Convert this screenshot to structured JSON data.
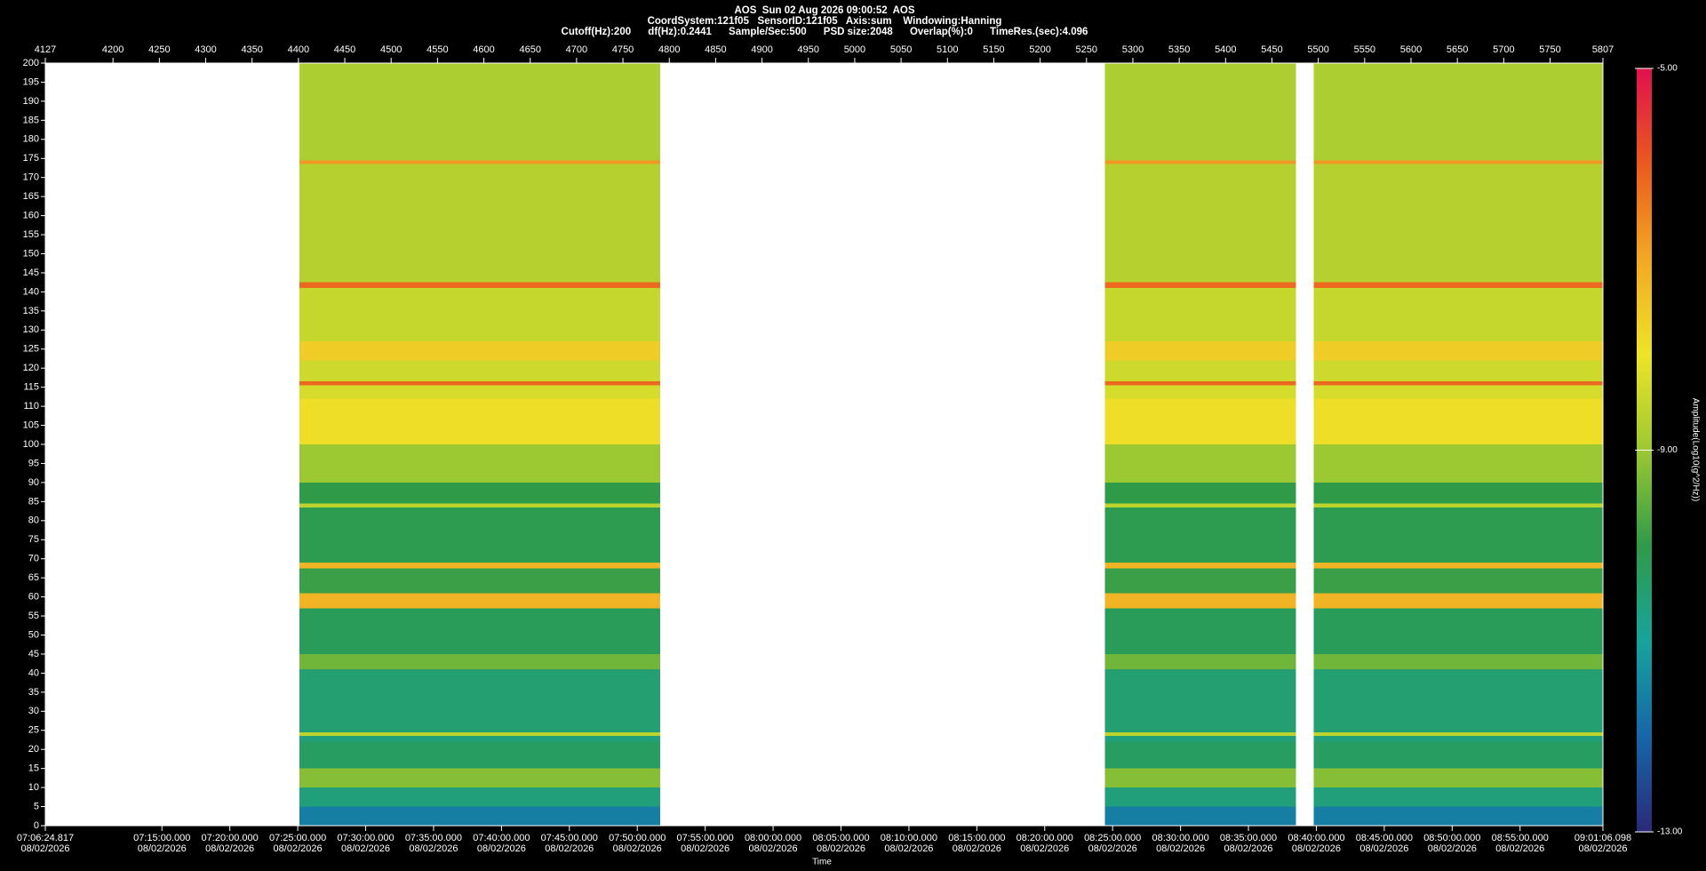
{
  "chart_data": {
    "type": "spectrogram",
    "title": "AOS  Sun 02 Aug 2026 09:00:52  AOS",
    "subtitle_lines": [
      "CoordSystem:121f05   SensorID:121f05   Axis:sum    Windowing:Hanning",
      "Cutoff(Hz):200      df(Hz):0.2441      Sample/Sec:500      PSD size:2048      Overlap(%):0      TimeRes.(sec):4.096"
    ],
    "xlim": [
      4127,
      5807
    ],
    "xticks": [
      4127,
      4200,
      4250,
      4300,
      4350,
      4400,
      4450,
      4500,
      4550,
      4600,
      4650,
      4700,
      4750,
      4800,
      4850,
      4900,
      4950,
      5000,
      5050,
      5100,
      5150,
      5200,
      5250,
      5300,
      5350,
      5400,
      5450,
      5500,
      5550,
      5600,
      5650,
      5700,
      5750,
      5807
    ],
    "x2lim": [
      "07:06:24.817",
      "09:01:06.098"
    ],
    "x2ticks": [
      "07:06:24.817",
      "07:15:00.000",
      "07:20:00.000",
      "07:25:00.000",
      "07:30:00.000",
      "07:35:00.000",
      "07:40:00.000",
      "07:45:00.000",
      "07:50:00.000",
      "07:55:00.000",
      "08:00:00.000",
      "08:05:00.000",
      "08:10:00.000",
      "08:15:00.000",
      "08:20:00.000",
      "08:25:00.000",
      "08:30:00.000",
      "08:35:00.000",
      "08:40:00.000",
      "08:45:00.000",
      "08:50:00.000",
      "08:55:00.000",
      "09:01:06.098"
    ],
    "x2_date": "08/02/2026",
    "x2_label": "Time",
    "ylim": [
      0,
      200
    ],
    "yticks": [
      0,
      5,
      10,
      15,
      20,
      25,
      30,
      35,
      40,
      45,
      50,
      55,
      60,
      65,
      70,
      75,
      80,
      85,
      90,
      95,
      100,
      105,
      110,
      115,
      120,
      125,
      130,
      135,
      140,
      145,
      150,
      155,
      160,
      165,
      170,
      175,
      180,
      185,
      190,
      195,
      200
    ],
    "segments": [
      [
        4401,
        4790
      ],
      [
        5270,
        5476
      ],
      [
        5495,
        5807
      ]
    ],
    "freq_bins": [
      0,
      5,
      10,
      15,
      22,
      23.5,
      24.5,
      41,
      45,
      57,
      61,
      67.5,
      69,
      83.5,
      84.5,
      90,
      100,
      112,
      115.5,
      116.5,
      122,
      127,
      141,
      142.5,
      173.5,
      174.5,
      200
    ],
    "amplitude": [
      -11.6,
      -10.6,
      -9.2,
      -10.3,
      -10.6,
      -8.6,
      -10.5,
      -9.4,
      -10.2,
      -7.2,
      -9.9,
      -7.2,
      -10.1,
      -8.6,
      -10.0,
      -9.0,
      -7.9,
      -8.3,
      -6.2,
      -8.4,
      -7.6,
      -8.5,
      -6.2,
      -8.7,
      -6.8,
      -8.8
    ],
    "colorbar_label": "Amplitude(Log10(g^2/Hz))",
    "clim": [
      -13,
      -5
    ],
    "cticks": [
      {
        "value": -5,
        "label": "-5.00"
      },
      {
        "value": -9,
        "label": "-9.00"
      },
      {
        "value": -13,
        "label": "-13.00"
      }
    ],
    "colormap": [
      {
        "value": -13,
        "color": "#2a2a78"
      },
      {
        "value": -12,
        "color": "#1666a8"
      },
      {
        "value": -11,
        "color": "#17a39c"
      },
      {
        "value": -10,
        "color": "#2f9a48"
      },
      {
        "value": -9,
        "color": "#9cc832"
      },
      {
        "value": -8,
        "color": "#eee428"
      },
      {
        "value": -7,
        "color": "#f2a824"
      },
      {
        "value": -6,
        "color": "#ea5a1e"
      },
      {
        "value": -5,
        "color": "#e0104e"
      }
    ]
  }
}
